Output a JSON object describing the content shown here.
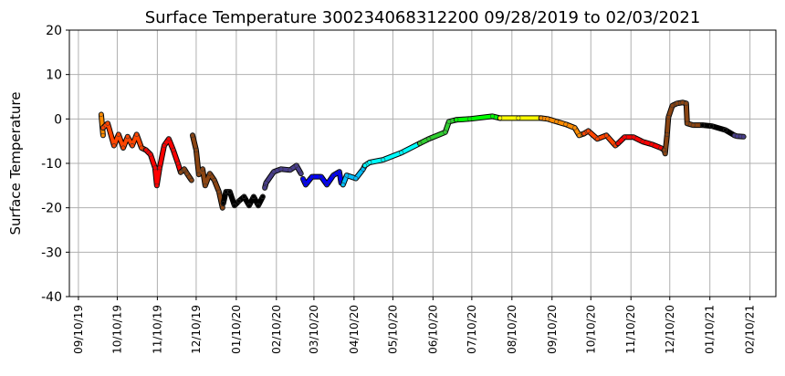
{
  "chart_data": {
    "type": "line",
    "title": "Surface Temperature 300234068312200  09/28/2019 to 02/03/2021",
    "xlabel": "",
    "ylabel": "Surface Temperature",
    "ylim": [
      -40,
      20
    ],
    "yticks": [
      20,
      10,
      0,
      -10,
      -20,
      -30,
      -40
    ],
    "x_units": "days since 2019-09-10",
    "xlim": [
      -7,
      539
    ],
    "xticks": [
      {
        "day": 0,
        "label": "09/10/19"
      },
      {
        "day": 30,
        "label": "10/10/19"
      },
      {
        "day": 61,
        "label": "11/10/19"
      },
      {
        "day": 91,
        "label": "12/10/19"
      },
      {
        "day": 122,
        "label": "01/10/20"
      },
      {
        "day": 153,
        "label": "02/10/20"
      },
      {
        "day": 182,
        "label": "03/10/20"
      },
      {
        "day": 213,
        "label": "04/10/20"
      },
      {
        "day": 243,
        "label": "05/10/20"
      },
      {
        "day": 274,
        "label": "06/10/20"
      },
      {
        "day": 304,
        "label": "07/10/20"
      },
      {
        "day": 335,
        "label": "08/10/20"
      },
      {
        "day": 366,
        "label": "09/10/20"
      },
      {
        "day": 396,
        "label": "10/10/20"
      },
      {
        "day": 427,
        "label": "11/10/20"
      },
      {
        "day": 457,
        "label": "12/10/20"
      },
      {
        "day": 488,
        "label": "01/10/21"
      },
      {
        "day": 519,
        "label": "02/10/21"
      }
    ],
    "grid": true,
    "series": [
      {
        "color": "#ff8c00",
        "points": [
          [
            17.6,
            1
          ],
          [
            19,
            -3.7
          ]
        ]
      },
      {
        "color": "#ff4500",
        "points": [
          [
            19,
            -2
          ],
          [
            22.6,
            -1
          ],
          [
            27.5,
            -6
          ],
          [
            31,
            -3.5
          ],
          [
            34.6,
            -6.5
          ],
          [
            38,
            -4
          ],
          [
            41.6,
            -6
          ],
          [
            45,
            -3.5
          ],
          [
            48.7,
            -6.5
          ],
          [
            52.2,
            -7
          ]
        ]
      },
      {
        "color": "#ff0000",
        "points": [
          [
            52.2,
            -7
          ],
          [
            55.7,
            -8
          ],
          [
            59.2,
            -11
          ],
          [
            60.6,
            -15
          ],
          [
            62.8,
            -11
          ],
          [
            66.3,
            -6
          ],
          [
            69.8,
            -4.5
          ],
          [
            73.3,
            -7
          ],
          [
            76.9,
            -10
          ],
          [
            79,
            -12
          ]
        ]
      },
      {
        "color": "#8b4513",
        "points": [
          [
            79,
            -12
          ],
          [
            81.8,
            -11.3
          ],
          [
            83.9,
            -12.3
          ],
          [
            87.4,
            -13.8
          ]
        ]
      },
      {
        "color": "#8b4513",
        "points": [
          [
            88.2,
            -3.7
          ],
          [
            91,
            -7
          ],
          [
            93,
            -12.5
          ],
          [
            96,
            -11.3
          ],
          [
            98,
            -15
          ],
          [
            101.5,
            -12.3
          ],
          [
            105,
            -13.8
          ],
          [
            108.6,
            -16.4
          ],
          [
            111.4,
            -20
          ]
        ]
      },
      {
        "color": "#000000",
        "points": [
          [
            112,
            -19
          ],
          [
            114,
            -16.4
          ],
          [
            117,
            -16.4
          ],
          [
            120.6,
            -19.5
          ],
          [
            124,
            -18.5
          ],
          [
            128,
            -17.5
          ],
          [
            132,
            -19.5
          ],
          [
            135.4,
            -17.5
          ],
          [
            139,
            -19.5
          ],
          [
            142.5,
            -17.5
          ]
        ]
      },
      {
        "color": "#483d8b",
        "points": [
          [
            144,
            -15.5
          ],
          [
            145,
            -14.4
          ],
          [
            151,
            -11.9
          ],
          [
            156.6,
            -11.3
          ],
          [
            163.6,
            -11.5
          ],
          [
            168.5,
            -10.5
          ],
          [
            172,
            -12.3
          ]
        ]
      },
      {
        "color": "#0000ff",
        "points": [
          [
            173.5,
            -13.5
          ],
          [
            175.6,
            -14.8
          ],
          [
            180.5,
            -13
          ],
          [
            187.6,
            -13
          ],
          [
            192,
            -14.8
          ],
          [
            197,
            -12.7
          ],
          [
            201.7,
            -11.9
          ],
          [
            203,
            -14.4
          ]
        ]
      },
      {
        "color": "#00bfff",
        "points": [
          [
            204.5,
            -14.8
          ],
          [
            207.3,
            -12.7
          ],
          [
            214.4,
            -13.4
          ],
          [
            220,
            -11.3
          ],
          [
            221.4,
            -10.5
          ]
        ]
      },
      {
        "color": "#00ffff",
        "points": [
          [
            221.4,
            -10.5
          ],
          [
            225,
            -9.8
          ],
          [
            235.5,
            -9.2
          ],
          [
            249.6,
            -7.6
          ],
          [
            263.8,
            -5.5
          ]
        ]
      },
      {
        "color": "#32cd32",
        "points": [
          [
            263.8,
            -5.5
          ],
          [
            270.8,
            -4.5
          ],
          [
            283.5,
            -3
          ],
          [
            286.3,
            -0.6
          ],
          [
            292,
            -0.2
          ]
        ]
      },
      {
        "color": "#00ff00",
        "points": [
          [
            292,
            -0.2
          ],
          [
            302.5,
            0
          ],
          [
            320,
            0.6
          ],
          [
            325.8,
            0.2
          ]
        ]
      },
      {
        "color": "#ffff00",
        "points": [
          [
            325.8,
            0.2
          ],
          [
            340,
            0.2
          ],
          [
            357.5,
            0.2
          ]
        ]
      },
      {
        "color": "#ff8c00",
        "points": [
          [
            357.5,
            0.2
          ],
          [
            362.5,
            0
          ],
          [
            369.5,
            -0.6
          ],
          [
            376.6,
            -1.2
          ],
          [
            383.6,
            -2
          ],
          [
            387,
            -3.7
          ],
          [
            390.7,
            -3.3
          ]
        ]
      },
      {
        "color": "#ff4500",
        "points": [
          [
            390.7,
            -3.3
          ],
          [
            394,
            -2.7
          ],
          [
            401,
            -4.5
          ],
          [
            408,
            -3.7
          ],
          [
            415,
            -6
          ],
          [
            417,
            -5.5
          ]
        ]
      },
      {
        "color": "#ff0000",
        "points": [
          [
            417,
            -5.5
          ],
          [
            422,
            -4.1
          ],
          [
            429,
            -4.1
          ],
          [
            436,
            -5.1
          ],
          [
            443,
            -5.7
          ],
          [
            450,
            -6.5
          ],
          [
            452.7,
            -7
          ]
        ]
      },
      {
        "color": "#8b4513",
        "points": [
          [
            452.7,
            -7
          ],
          [
            453.4,
            -7.8
          ],
          [
            454.9,
            -3.5
          ],
          [
            456,
            0.4
          ],
          [
            459,
            3
          ],
          [
            462.6,
            3.5
          ],
          [
            466.9,
            3.7
          ],
          [
            469.7,
            3.5
          ],
          [
            470.4,
            -1
          ],
          [
            475,
            -1.4
          ],
          [
            482.4,
            -1.4
          ]
        ]
      },
      {
        "color": "#000000",
        "points": [
          [
            482.4,
            -1.4
          ],
          [
            489.4,
            -1.6
          ],
          [
            500,
            -2.5
          ],
          [
            507,
            -3.7
          ]
        ]
      },
      {
        "color": "#483d8b",
        "points": [
          [
            507,
            -3.7
          ],
          [
            509,
            -3.9
          ],
          [
            514,
            -4
          ]
        ]
      }
    ]
  }
}
